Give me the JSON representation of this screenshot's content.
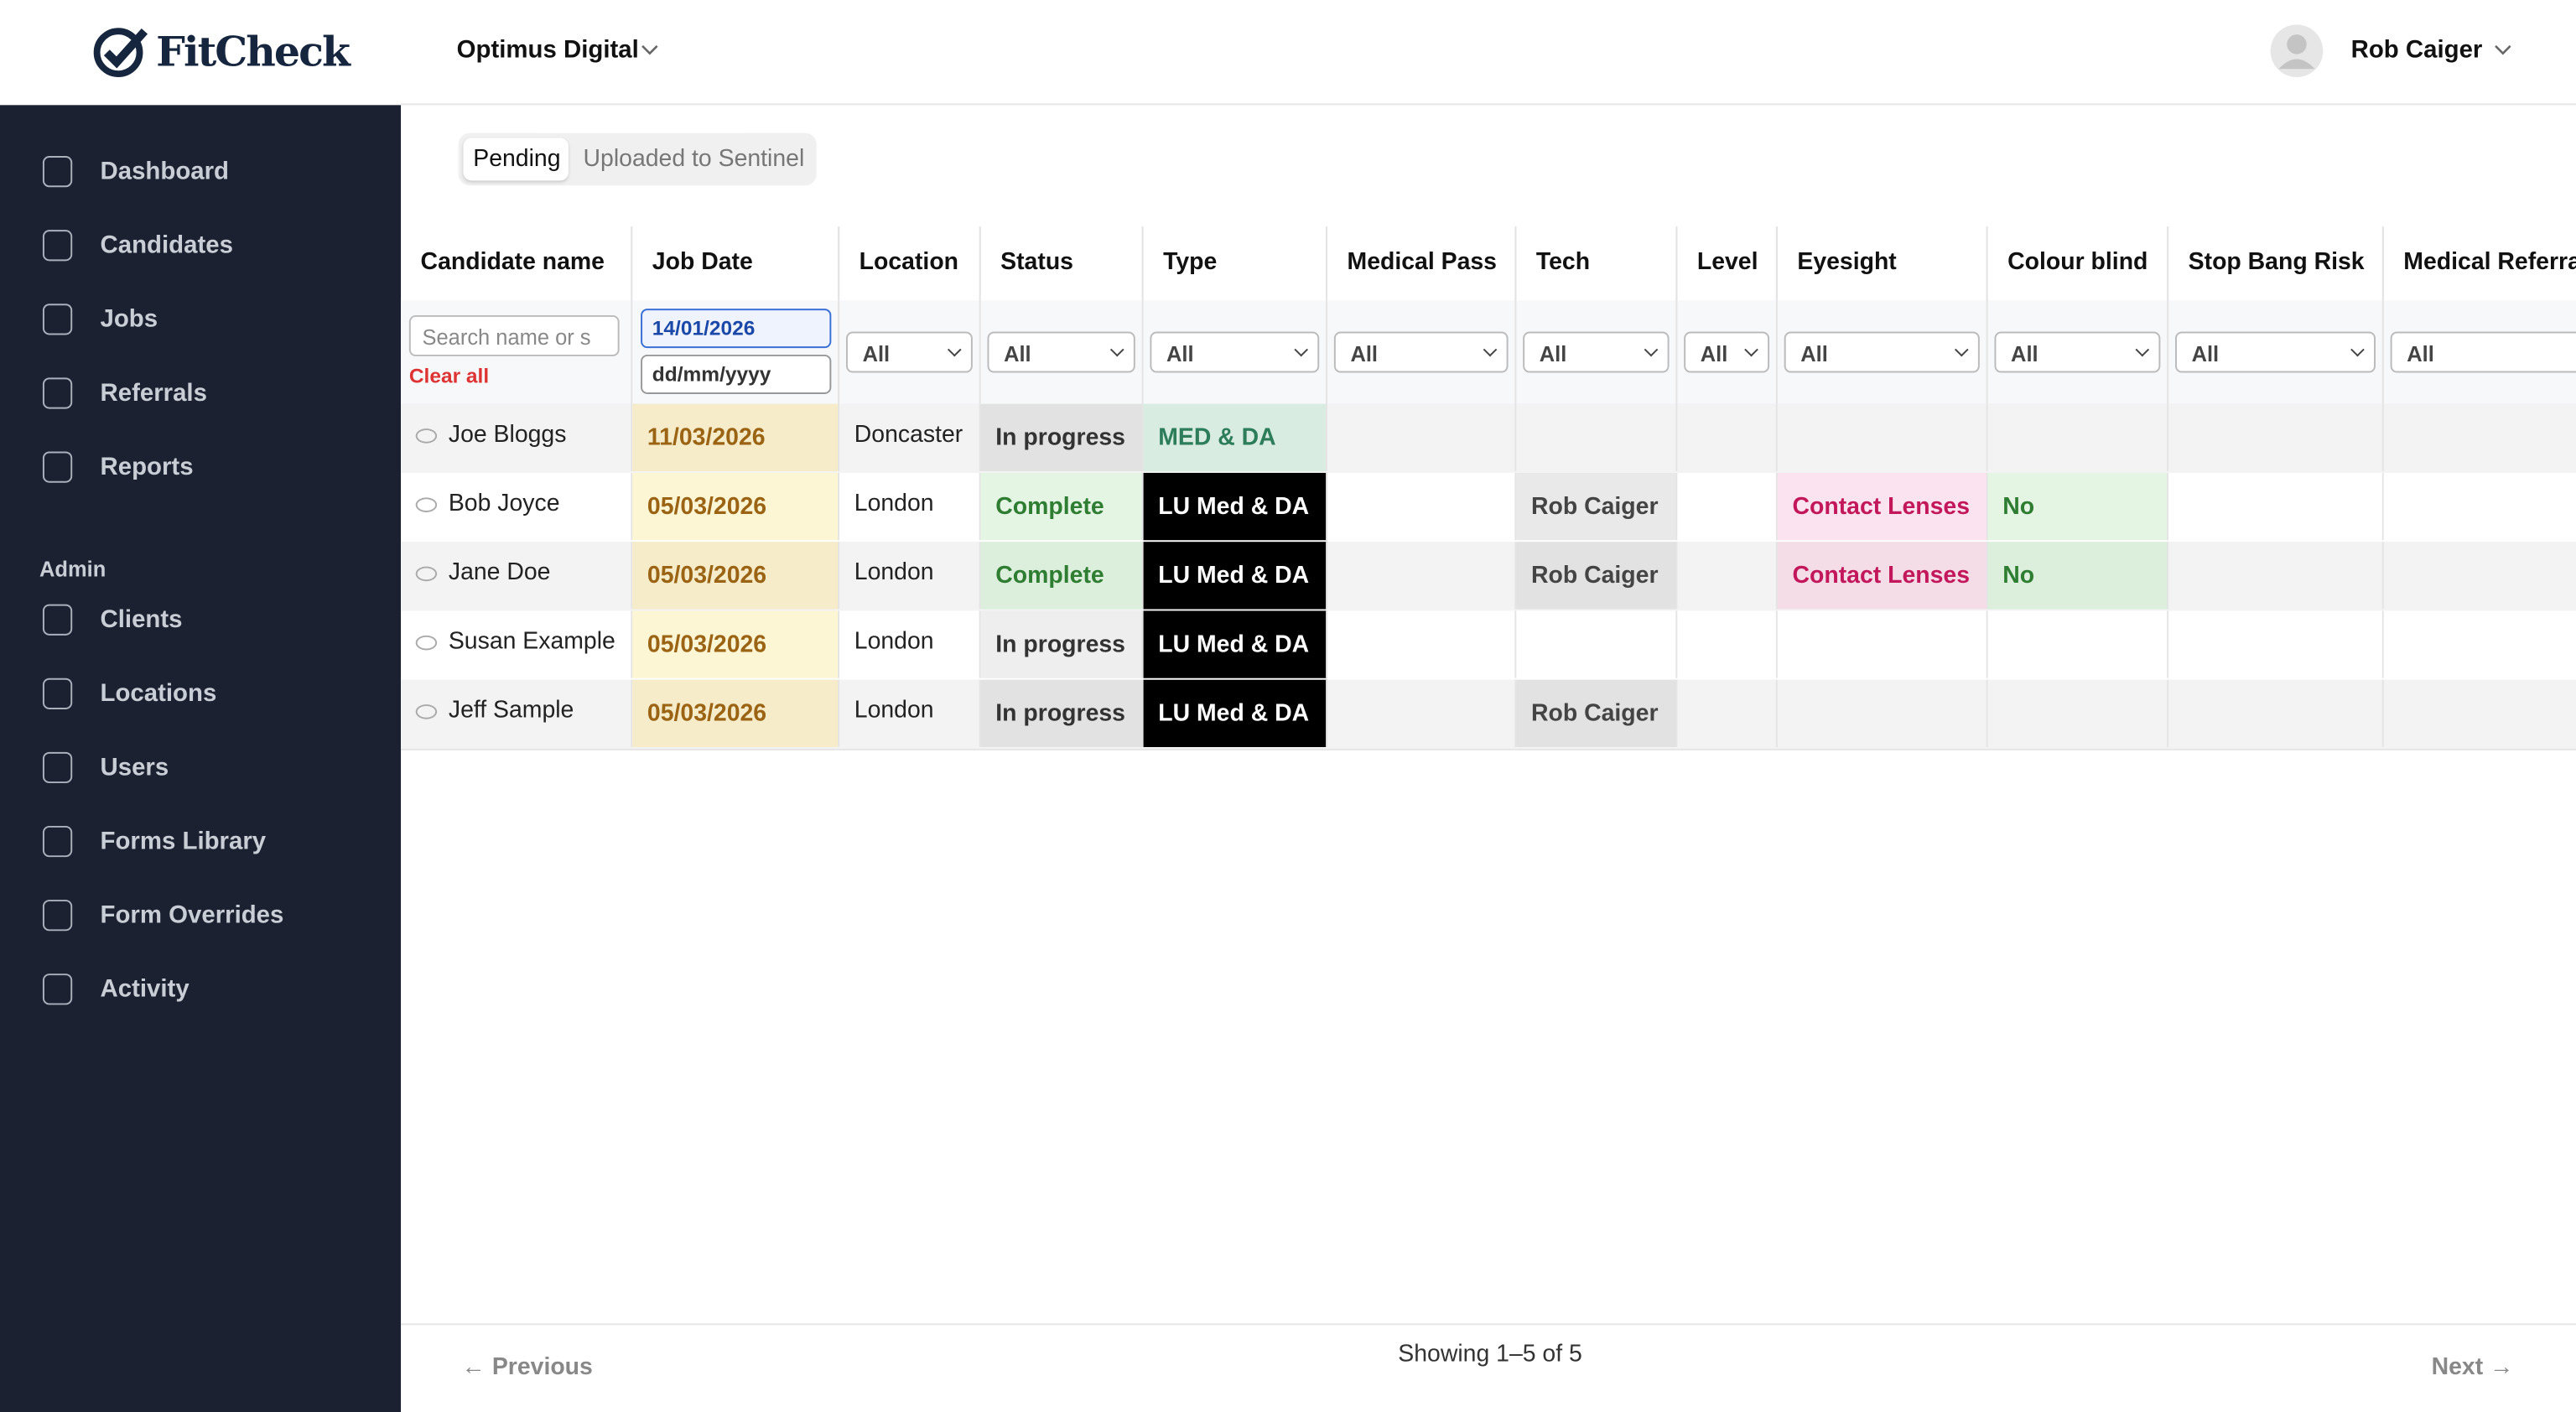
{
  "brand": "FitCheck",
  "org": "Optimus Digital",
  "user": "Rob Caiger",
  "nav": [
    "Dashboard",
    "Candidates",
    "Jobs",
    "Referrals",
    "Reports"
  ],
  "admin_label": "Admin",
  "admin_nav": [
    "Clients",
    "Locations",
    "Users",
    "Forms Library",
    "Form Overrides",
    "Activity"
  ],
  "tabs": [
    "Pending",
    "Uploaded to Sentinel"
  ],
  "table": {
    "columns": [
      "Candidate name",
      "Job Date",
      "Location",
      "Status",
      "Type",
      "Medical Pass",
      "Tech",
      "Level",
      "Eyesight",
      "Colour blind",
      "Stop Bang Risk",
      "Medical Referral"
    ],
    "search_placeholder": "Search name or s",
    "clear": "Clear all",
    "date_from": "14/01/2026",
    "date_to": "dd/mm/yyyy",
    "filter_all": "All",
    "rows": [
      [
        {
          "text": "Joe Bloggs"
        },
        {
          "text": "11/03/2026",
          "bg": "#f7ecc9",
          "color": "#9a6414"
        },
        {
          "text": "Doncaster"
        },
        {
          "text": "In progress",
          "bg": "#e2e2e2",
          "color": "#333333"
        },
        {
          "text": "MED & DA",
          "bg": "#d8ece2",
          "color": "#2e7d5a"
        },
        null,
        null,
        null,
        null,
        null,
        null,
        null
      ],
      [
        {
          "text": "Bob Joyce"
        },
        {
          "text": "05/03/2026",
          "bg": "#fdf6d4",
          "color": "#9a6414"
        },
        {
          "text": "London"
        },
        {
          "text": "Complete",
          "bg": "#e4f5e4",
          "color": "#2e7d32"
        },
        {
          "text": "LU Med & DA",
          "bg": "#000000",
          "color": "#ffffff"
        },
        null,
        {
          "text": "Rob Caiger",
          "bg": "#e9e9e9",
          "color": "#444444"
        },
        null,
        {
          "text": "Contact Lenses",
          "bg": "#fbe4ef",
          "color": "#c2185b"
        },
        {
          "text": "No",
          "bg": "#e4f5e4",
          "color": "#2e7d32"
        },
        null,
        null
      ],
      [
        {
          "text": "Jane Doe"
        },
        {
          "text": "05/03/2026",
          "bg": "#f7ecc9",
          "color": "#9a6414"
        },
        {
          "text": "London"
        },
        {
          "text": "Complete",
          "bg": "#dcefdc",
          "color": "#2e7d32"
        },
        {
          "text": "LU Med & DA",
          "bg": "#000000",
          "color": "#ffffff"
        },
        null,
        {
          "text": "Rob Caiger",
          "bg": "#e2e2e2",
          "color": "#444444"
        },
        null,
        {
          "text": "Contact Lenses",
          "bg": "#f5dde8",
          "color": "#c2185b"
        },
        {
          "text": "No",
          "bg": "#dcefdc",
          "color": "#2e7d32"
        },
        null,
        null
      ],
      [
        {
          "text": "Susan Example"
        },
        {
          "text": "05/03/2026",
          "bg": "#fdf6d4",
          "color": "#9a6414"
        },
        {
          "text": "London"
        },
        {
          "text": "In progress",
          "bg": "#eeeeee",
          "color": "#333333"
        },
        {
          "text": "LU Med & DA",
          "bg": "#000000",
          "color": "#ffffff"
        },
        null,
        null,
        null,
        null,
        null,
        null,
        null
      ],
      [
        {
          "text": "Jeff Sample"
        },
        {
          "text": "05/03/2026",
          "bg": "#f7ecc9",
          "color": "#9a6414"
        },
        {
          "text": "London"
        },
        {
          "text": "In progress",
          "bg": "#e2e2e2",
          "color": "#333333"
        },
        {
          "text": "LU Med & DA",
          "bg": "#000000",
          "color": "#ffffff"
        },
        null,
        {
          "text": "Rob Caiger",
          "bg": "#e2e2e2",
          "color": "#444444"
        },
        null,
        null,
        null,
        null,
        null
      ]
    ]
  },
  "pagination": {
    "previous": "← Previous",
    "summary": "Showing 1–5 of 5",
    "next": "Next →"
  }
}
